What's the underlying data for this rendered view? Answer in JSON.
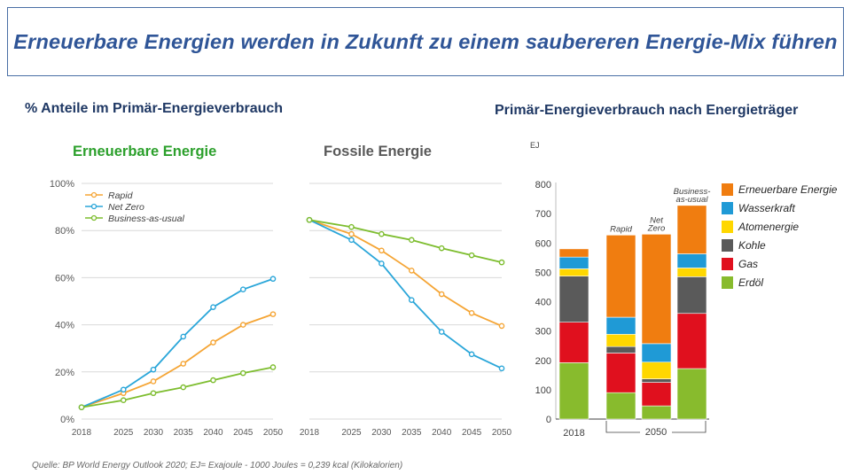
{
  "title": "Erneuerbare Energien werden in Zukunft zu einem saubereren Energie-Mix führen",
  "left_heading": "% Anteile im Primär-Energieverbrauch",
  "right_heading": "Primär-Energieverbrauch nach Energieträger",
  "source_note": "Quelle: BP World Energy Outlook 2020; EJ= Exajoule - 1000 Joules = 0,239 kcal (Kilokalorien)",
  "colors": {
    "rapid": "#f5a535",
    "net_zero": "#2aa6d9",
    "bau": "#7dbd2e",
    "renewable_title": "#2ca02c",
    "fossil_title": "#595959",
    "grid": "#d9d9d9",
    "axis_text": "#595959"
  },
  "chart_data": [
    {
      "type": "line",
      "title": "Erneuerbare Energie",
      "x": [
        "2018",
        "2025",
        "2030",
        "2035",
        "2040",
        "2045",
        "2050"
      ],
      "y_tick_labels": [
        "0%",
        "20%",
        "40%",
        "60%",
        "80%",
        "100%"
      ],
      "ylim": [
        0,
        100
      ],
      "series": [
        {
          "name": "Rapid",
          "values": [
            5,
            11,
            16,
            23.5,
            32.5,
            40,
            44.5
          ]
        },
        {
          "name": "Net Zero",
          "values": [
            5,
            12.5,
            21,
            35,
            47.5,
            55,
            59.5
          ]
        },
        {
          "name": "Business-as-usual",
          "values": [
            5,
            8,
            11,
            13.5,
            16.5,
            19.5,
            22
          ]
        }
      ]
    },
    {
      "type": "line",
      "title": "Fossile Energie",
      "x": [
        "2018",
        "2025",
        "2030",
        "2035",
        "2040",
        "2045",
        "2050"
      ],
      "ylim": [
        0,
        100
      ],
      "series": [
        {
          "name": "Rapid",
          "values": [
            84.5,
            78.5,
            71.5,
            63,
            53,
            45,
            39.5
          ]
        },
        {
          "name": "Net Zero",
          "values": [
            84.5,
            76,
            66,
            50.5,
            37,
            27.5,
            21.5
          ]
        },
        {
          "name": "Business-as-usual",
          "values": [
            84.5,
            81.5,
            78.5,
            76,
            72.5,
            69.5,
            66.5
          ]
        }
      ]
    },
    {
      "type": "bar",
      "stacked": true,
      "unit": "EJ",
      "categories": [
        "2018",
        "Rapid",
        "Net Zero",
        "Business-as-usual"
      ],
      "category_labels": [
        "",
        "Rapid",
        "Net\nZero",
        "Business-\nas-usual"
      ],
      "x_tick_labels": [
        "2018",
        "2050"
      ],
      "y_tick_labels": [
        "0",
        "100",
        "200",
        "300",
        "400",
        "500",
        "600",
        "700",
        "800"
      ],
      "ylim": [
        0,
        800
      ],
      "series": [
        {
          "name": "Erdöl",
          "color": "#88bb2d",
          "values": [
            192,
            90,
            45,
            172
          ]
        },
        {
          "name": "Gas",
          "color": "#e0101e",
          "values": [
            138,
            135,
            80,
            188
          ]
        },
        {
          "name": "Kohle",
          "color": "#5a5a5a",
          "values": [
            157,
            22,
            12,
            125
          ]
        },
        {
          "name": "Atomenergie",
          "color": "#ffd700",
          "values": [
            25,
            42,
            57,
            30
          ]
        },
        {
          "name": "Wasserkraft",
          "color": "#1f9ad6",
          "values": [
            40,
            58,
            63,
            48
          ]
        },
        {
          "name": "Erneuerbare Energie",
          "color": "#f07d10",
          "values": [
            28,
            280,
            373,
            165
          ]
        }
      ],
      "legend_order": [
        "Erneuerbare Energie",
        "Wasserkraft",
        "Atomenergie",
        "Kohle",
        "Gas",
        "Erdöl"
      ]
    }
  ]
}
